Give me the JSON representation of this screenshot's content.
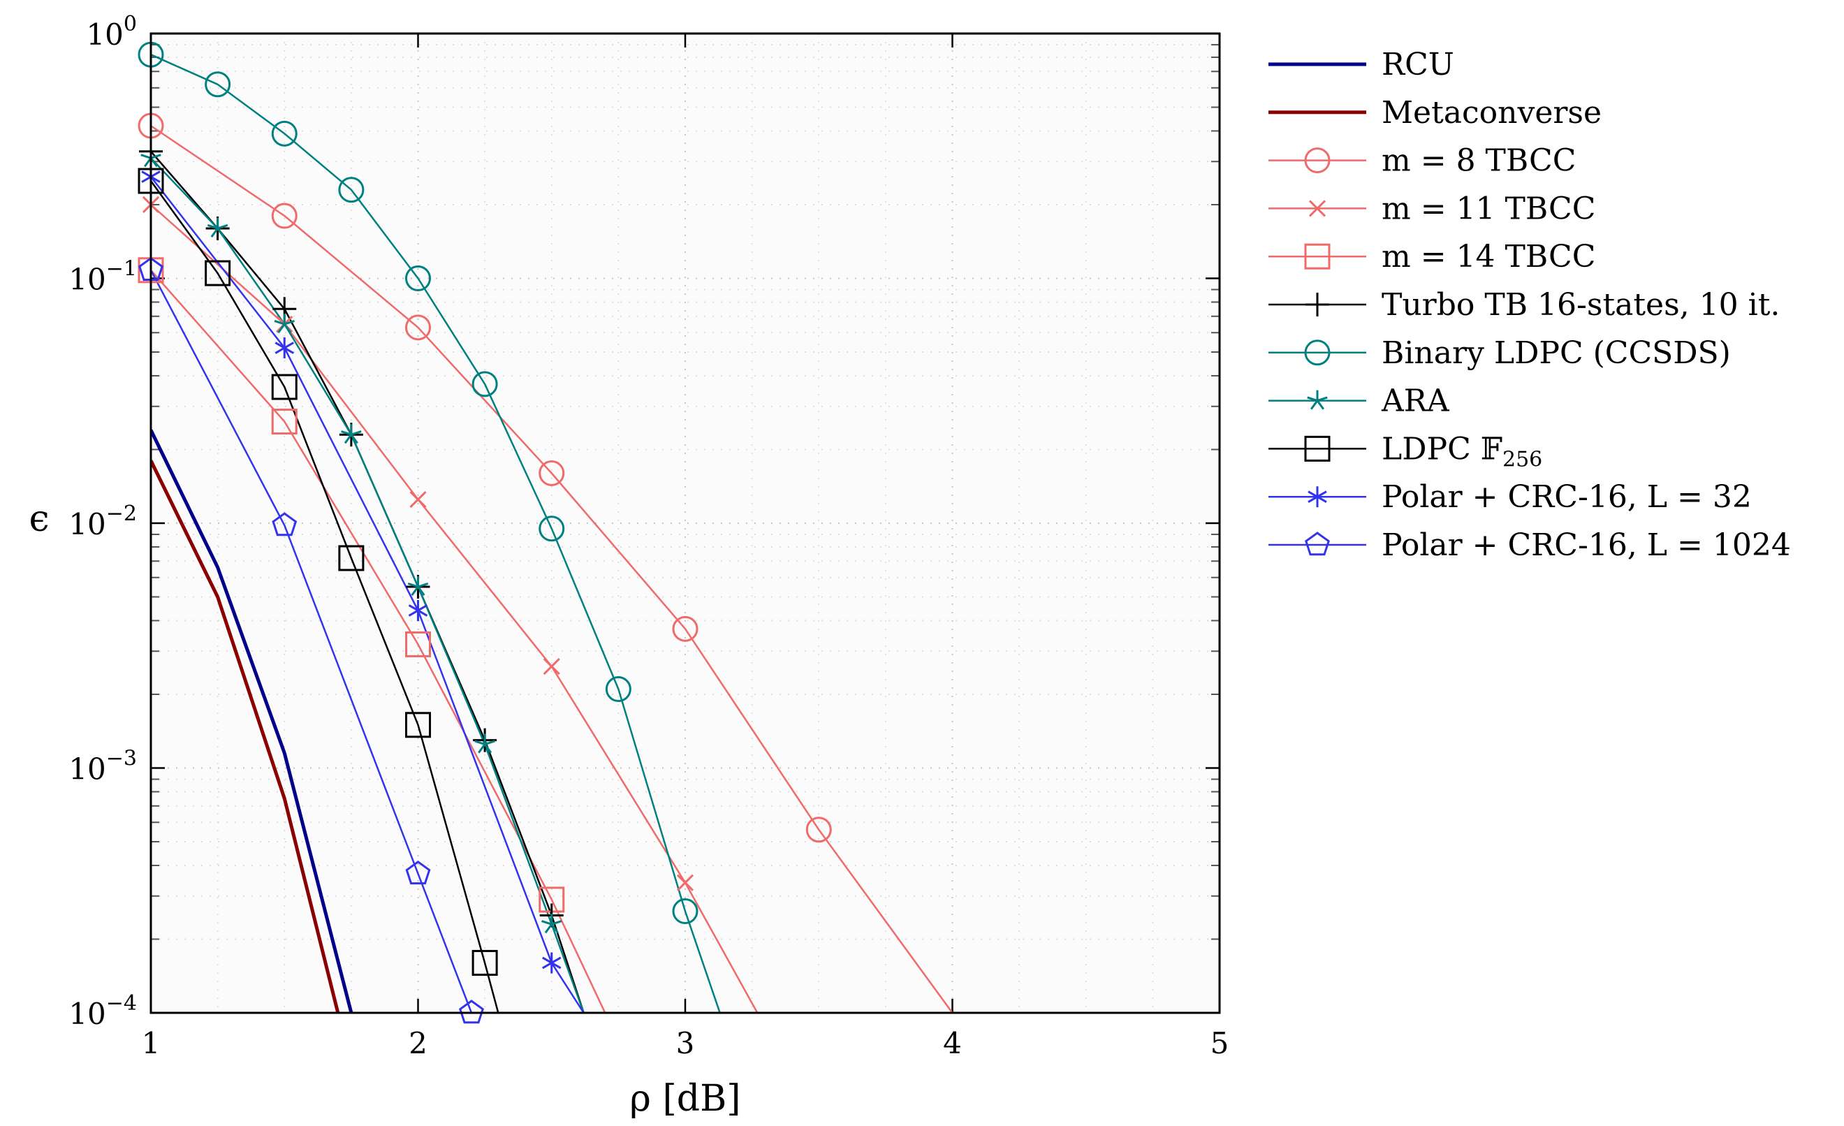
{
  "chart_data": {
    "type": "line",
    "title": "",
    "xlabel": "ρ [dB]",
    "ylabel": "ϵ",
    "xlim": [
      1,
      5
    ],
    "ylim": [
      0.0001,
      1
    ],
    "yscale": "log",
    "grid": true,
    "legend_position": "outside-right",
    "x_ticks": [
      {
        "value": 1,
        "label": "1"
      },
      {
        "value": 2,
        "label": "2"
      },
      {
        "value": 3,
        "label": "3"
      },
      {
        "value": 4,
        "label": "4"
      },
      {
        "value": 5,
        "label": "5"
      }
    ],
    "y_ticks": [
      {
        "value": 1,
        "base": "10",
        "exp": "0"
      },
      {
        "value": 0.1,
        "base": "10",
        "exp": "−1"
      },
      {
        "value": 0.01,
        "base": "10",
        "exp": "−2"
      },
      {
        "value": 0.001,
        "base": "10",
        "exp": "−3"
      },
      {
        "value": 0.0001,
        "base": "10",
        "exp": "−4"
      }
    ],
    "series": [
      {
        "name": "RCU",
        "color": "#00008b",
        "marker": "none",
        "lw": 5,
        "x": [
          1,
          1.25,
          1.5,
          1.75
        ],
        "y": [
          0.024,
          0.0066,
          0.00115,
          0.0001
        ]
      },
      {
        "name": "Metaconverse",
        "color": "#8b0000",
        "marker": "none",
        "lw": 5,
        "x": [
          1,
          1.25,
          1.5,
          1.7
        ],
        "y": [
          0.018,
          0.005,
          0.00075,
          0.0001
        ]
      },
      {
        "name": "m = 8 TBCC",
        "color": "#f06a6a",
        "marker": "circle",
        "lw": 2.5,
        "x": [
          1,
          1.5,
          2,
          2.5,
          3,
          3.5,
          4
        ],
        "y": [
          0.42,
          0.18,
          0.063,
          0.016,
          0.0037,
          0.00056,
          0.0001
        ]
      },
      {
        "name": "m = 11 TBCC",
        "color": "#f06a6a",
        "marker": "x",
        "lw": 2.5,
        "x": [
          1,
          1.5,
          2,
          2.5,
          3,
          3.27
        ],
        "y": [
          0.2,
          0.065,
          0.0125,
          0.0026,
          0.00034,
          0.0001
        ]
      },
      {
        "name": "m = 14 TBCC",
        "color": "#f06a6a",
        "marker": "square",
        "lw": 2.5,
        "x": [
          1,
          1.5,
          2,
          2.5,
          2.7
        ],
        "y": [
          0.108,
          0.026,
          0.0032,
          0.00029,
          0.0001
        ]
      },
      {
        "name": "Turbo TB 16-states, 10 it.",
        "color": "#000000",
        "marker": "plus",
        "lw": 2.5,
        "x": [
          1,
          1.25,
          1.5,
          1.75,
          2,
          2.25,
          2.5,
          2.62
        ],
        "y": [
          0.33,
          0.16,
          0.075,
          0.023,
          0.0055,
          0.0013,
          0.00025,
          0.0001
        ]
      },
      {
        "name": "Binary LDPC (CCSDS)",
        "color": "#008080",
        "marker": "circle",
        "lw": 2.5,
        "x": [
          1,
          1.25,
          1.5,
          1.75,
          2,
          2.25,
          2.5,
          2.75,
          3,
          3.13
        ],
        "y": [
          0.82,
          0.62,
          0.39,
          0.23,
          0.1,
          0.037,
          0.0095,
          0.0021,
          0.00026,
          0.0001
        ]
      },
      {
        "name": "ARA",
        "color": "#008080",
        "marker": "star",
        "lw": 2.5,
        "x": [
          1,
          1.25,
          1.5,
          1.75,
          2,
          2.25,
          2.5,
          2.62
        ],
        "y": [
          0.31,
          0.16,
          0.065,
          0.023,
          0.0055,
          0.00125,
          0.00023,
          0.0001
        ]
      },
      {
        "name": "LDPC 𝔽256",
        "label_main": "LDPC 𝔽",
        "label_sub": "256",
        "color": "#000000",
        "marker": "square",
        "lw": 2.5,
        "x": [
          1,
          1.25,
          1.5,
          1.75,
          2,
          2.25,
          2.3
        ],
        "y": [
          0.25,
          0.105,
          0.036,
          0.0072,
          0.0015,
          0.00016,
          0.0001
        ]
      },
      {
        "name": "Polar + CRC-16, L = 32",
        "color": "#3333ee",
        "marker": "asterisk",
        "lw": 2.5,
        "x": [
          1,
          1.5,
          2,
          2.5,
          2.62
        ],
        "y": [
          0.26,
          0.052,
          0.0044,
          0.00016,
          0.0001
        ]
      },
      {
        "name": "Polar + CRC-16, L = 1024",
        "color": "#3333ee",
        "marker": "pentagon",
        "lw": 2.5,
        "x": [
          1,
          1.5,
          2,
          2.2
        ],
        "y": [
          0.108,
          0.0098,
          0.00037,
          0.0001
        ]
      }
    ]
  }
}
